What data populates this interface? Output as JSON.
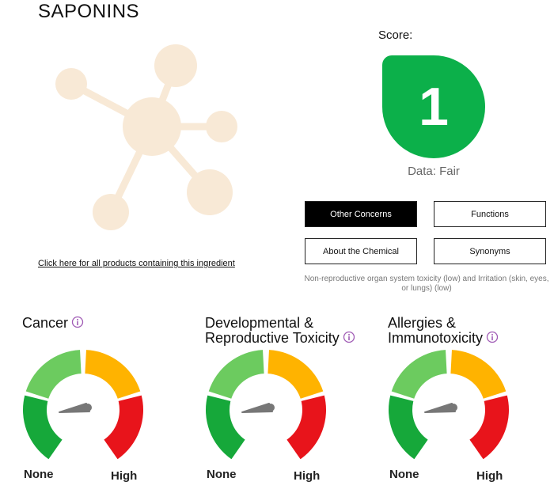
{
  "header": {
    "title": "SAPONINS"
  },
  "link": "Click here for all products containing this ingredient",
  "score": {
    "label": "Score:",
    "value": 1,
    "data_availability": "Data: Fair"
  },
  "tabs": [
    "Other Concerns",
    "Functions",
    "About the Chemical",
    "Synonyms"
  ],
  "description": "Non-reproductive organ system toxicity (low) and Irritation (skin, eyes, or lungs) (low)",
  "gauges": [
    {
      "title_lines": [
        "Cancer"
      ],
      "low_label": "None",
      "high_label": "High"
    },
    {
      "title_lines": [
        "Developmental &",
        "Reproductive Toxicity"
      ],
      "low_label": "None",
      "high_label": "High"
    },
    {
      "title_lines": [
        "Allergies &",
        "Immunotoxicity"
      ],
      "low_label": "None",
      "high_label": "High"
    }
  ]
}
